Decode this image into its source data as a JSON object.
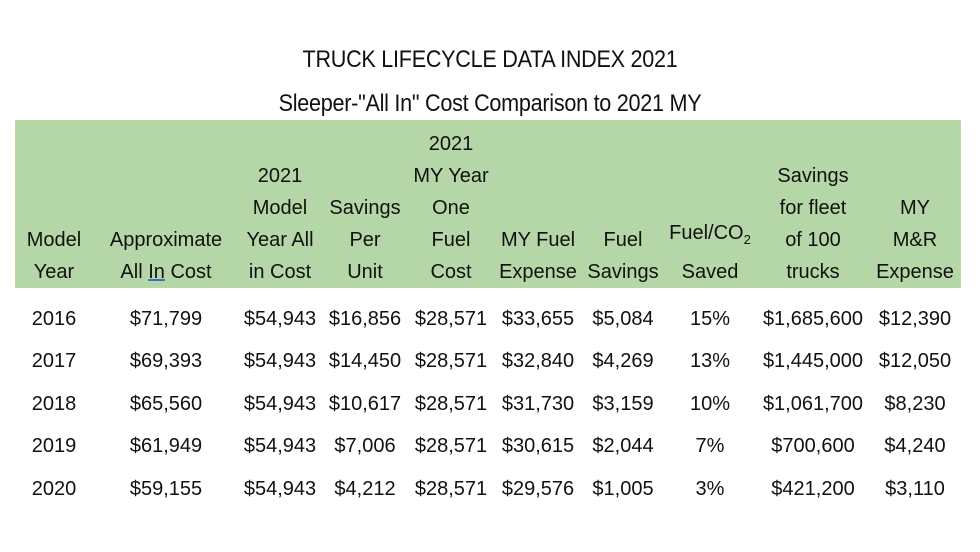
{
  "title": "TRUCK LIFECYCLE DATA INDEX 2021",
  "subtitle": "Sleeper-\"All In\" Cost Comparison to 2021 MY",
  "columns": [
    "Model\nYear",
    "Approximate\nAll In Cost",
    "2021\nModel\nYear All\nin Cost",
    "Savings\nPer\nUnit",
    "2021\nMY Year\nOne\nFuel\nCost",
    "MY Fuel\nExpense",
    "Fuel\nSavings",
    "Fuel/CO2\nSaved",
    "Savings\nfor fleet\nof 100\ntrucks",
    "MY\nM&R\nExpense"
  ],
  "rows": [
    [
      "2016",
      "$71,799",
      "$54,943",
      "$16,856",
      "$28,571",
      "$33,655",
      "$5,084",
      "15%",
      "$1,685,600",
      "$12,390"
    ],
    [
      "2017",
      "$69,393",
      "$54,943",
      "$14,450",
      "$28,571",
      "$32,840",
      "$4,269",
      "13%",
      "$1,445,000",
      "$12,050"
    ],
    [
      "2018",
      "$65,560",
      "$54,943",
      "$10,617",
      "$28,571",
      "$31,730",
      "$3,159",
      "10%",
      "$1,061,700",
      "$8,230"
    ],
    [
      "2019",
      "$61,949",
      "$54,943",
      "$7,006",
      "$28,571",
      "$30,615",
      "$2,044",
      "7%",
      "$700,600",
      "$4,240"
    ],
    [
      "2020",
      "$59,155",
      "$54,943",
      "$4,212",
      "$28,571",
      "$29,576",
      "$1,005",
      "3%",
      "$421,200",
      "$3,110"
    ]
  ],
  "colors": {
    "header_bg": "#b5d6a7"
  }
}
